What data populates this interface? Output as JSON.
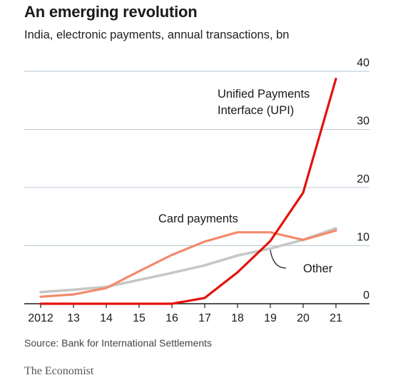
{
  "header": {
    "title": "An emerging revolution",
    "subtitle": "India, electronic payments, annual transactions, bn"
  },
  "footer": {
    "source": "Source: Bank for International Settlements",
    "brand": "The Economist"
  },
  "colors": {
    "upi": "#e3120b",
    "card": "#f4896b",
    "other": "#c7c7c7",
    "grid": "#b7c6d3",
    "axis": "#1a1a1a"
  },
  "chart_data": {
    "type": "line",
    "x": [
      2012,
      2013,
      2014,
      2015,
      2016,
      2017,
      2018,
      2019,
      2020,
      2021
    ],
    "x_tick_labels": [
      "2012",
      "13",
      "14",
      "15",
      "16",
      "17",
      "18",
      "19",
      "20",
      "21"
    ],
    "ylim": [
      0,
      40
    ],
    "y_ticks": [
      0,
      10,
      20,
      30,
      40
    ],
    "y_tick_labels": [
      "0",
      "10",
      "20",
      "30",
      "40"
    ],
    "y_axis_side": "right",
    "grid": true,
    "legend": "inline labels",
    "series": [
      {
        "name": "Unified Payments Interface (UPI)",
        "label_lines": [
          "Unified Payments",
          "Interface (UPI)"
        ],
        "key": "upi",
        "values": [
          0,
          0,
          0,
          0,
          0,
          1,
          5.4,
          10.8,
          19.1,
          38.7
        ]
      },
      {
        "name": "Card payments",
        "label_lines": [
          "Card payments"
        ],
        "key": "card",
        "values": [
          1.2,
          1.6,
          2.7,
          5.6,
          8.4,
          10.7,
          12.3,
          12.3,
          11,
          12.6
        ]
      },
      {
        "name": "Other",
        "label_lines": [
          "Other"
        ],
        "key": "other",
        "values": [
          2,
          2.4,
          2.9,
          4.1,
          5.3,
          6.6,
          8.3,
          9.5,
          11,
          13
        ]
      }
    ]
  }
}
